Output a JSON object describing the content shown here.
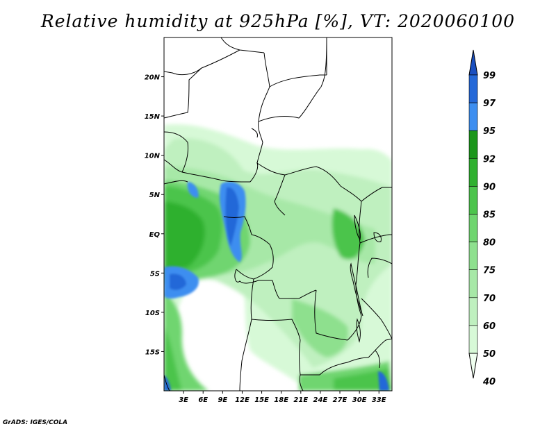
{
  "title": "Relative humidity at 925hPa [%], VT: 2020060100",
  "credit": "GrADS: IGES/COLA",
  "map": {
    "lon_range": [
      0,
      35
    ],
    "lat_range": [
      -20,
      25
    ],
    "lon_ticks": [
      "3E",
      "6E",
      "9E",
      "12E",
      "15E",
      "18E",
      "21E",
      "24E",
      "27E",
      "30E",
      "33E"
    ],
    "lat_ticks": [
      "20N",
      "15N",
      "10N",
      "5N",
      "EQ",
      "5S",
      "10S",
      "15S"
    ]
  },
  "colorbar": {
    "labels": [
      "40",
      "50",
      "60",
      "70",
      "75",
      "80",
      "85",
      "90",
      "92",
      "95",
      "97",
      "99"
    ],
    "colors": [
      "#f0fff0",
      "#d7f9d7",
      "#bff0bf",
      "#a7e8a7",
      "#8ee08e",
      "#6fd56f",
      "#4cc44c",
      "#2fb02f",
      "#1b961b",
      "#3d8ef0",
      "#2468d8",
      "#1a4fc0"
    ]
  }
}
